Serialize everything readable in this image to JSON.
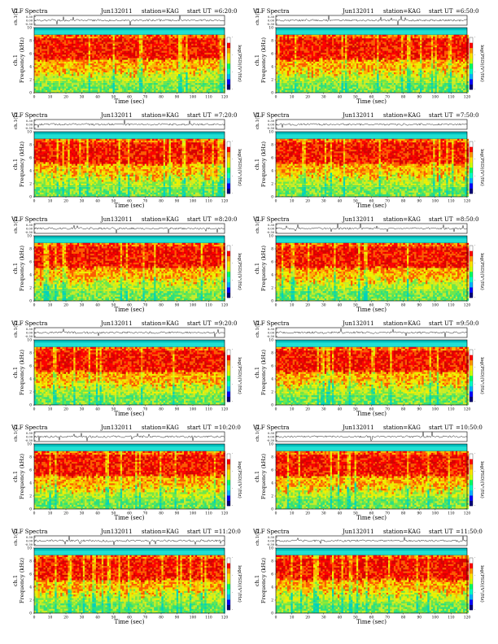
{
  "page": {
    "title_prefix": "VLF Spectra",
    "date": "Jun132011",
    "station": "station=KAG",
    "start_prefix": "start  UT",
    "colors": {
      "background": "#00bdbd",
      "band_top": "#21e0d2",
      "noise": [
        "#00d2be",
        "#2ee07e",
        "#6ee84a",
        "#c8ec2a",
        "#f0f000",
        "#ffb400",
        "#ff5a00",
        "#ff0000",
        "#d80000"
      ],
      "colorbar": [
        "#00007a",
        "#0000ff",
        "#00b4ff",
        "#00ffc8",
        "#00ff64",
        "#d2ff00",
        "#ffe600",
        "#ff9600",
        "#ff0000",
        "#ffffff"
      ],
      "trace": "#000000"
    }
  },
  "chart_data": [
    {
      "type": "heatmap",
      "panel": "left-1",
      "start_ut": "=6:20:0",
      "waveform_label": "ch.1(V)",
      "waveform_ticks": [
        "0.30",
        "0.00",
        "-0.30"
      ],
      "ylabel_station": "ch.1",
      "ylabel": "Frequency (kHz)",
      "xlabel": "Time (sec)",
      "colorbar_label": "log(PSD)(V²/Hz)",
      "x_ticks": [
        0,
        10,
        20,
        30,
        40,
        50,
        60,
        70,
        80,
        90,
        100,
        110,
        120
      ],
      "y_ticks": [
        0,
        2,
        4,
        6,
        8,
        10
      ],
      "xlim": [
        0,
        120
      ],
      "ylim": [
        0,
        10
      ],
      "colorbar_ticks": [
        "-",
        "-",
        "-",
        "-"
      ]
    },
    {
      "type": "heatmap",
      "panel": "right-1",
      "start_ut": "=6:50:0",
      "waveform_label": "ch.1(V)",
      "waveform_ticks": [
        "0.30",
        "0.00",
        "-0.30"
      ],
      "ylabel_station": "ch.1",
      "ylabel": "Frequency (kHz)",
      "xlabel": "Time (sec)",
      "colorbar_label": "log(PSD)(V²/Hz)",
      "x_ticks": [
        0,
        10,
        20,
        30,
        40,
        50,
        60,
        70,
        80,
        90,
        100,
        110,
        120
      ],
      "y_ticks": [
        0,
        2,
        4,
        6,
        8,
        10
      ],
      "xlim": [
        0,
        120
      ],
      "ylim": [
        0,
        10
      ],
      "colorbar_ticks": [
        "-",
        "-",
        "-",
        "-"
      ]
    },
    {
      "type": "heatmap",
      "panel": "left-2",
      "start_ut": "=7:20:0",
      "waveform_label": "ch.1(V)",
      "waveform_ticks": [
        "0.30",
        "0.00",
        "-0.30"
      ],
      "ylabel_station": "ch.1",
      "ylabel": "Frequency (kHz)",
      "xlabel": "Time (sec)",
      "colorbar_label": "log(PSD)(V²/Hz)",
      "x_ticks": [
        0,
        10,
        20,
        30,
        40,
        50,
        60,
        70,
        80,
        90,
        100,
        110,
        120
      ],
      "y_ticks": [
        0,
        2,
        4,
        6,
        8,
        10
      ],
      "xlim": [
        0,
        120
      ],
      "ylim": [
        0,
        10
      ],
      "colorbar_ticks": [
        "-",
        "-",
        "-",
        "-"
      ]
    },
    {
      "type": "heatmap",
      "panel": "right-2",
      "start_ut": "=7:50:0",
      "waveform_label": "ch.1(V)",
      "waveform_ticks": [
        "0.30",
        "0.00",
        "-0.30"
      ],
      "ylabel_station": "ch.1",
      "ylabel": "Frequency (kHz)",
      "xlabel": "Time (sec)",
      "colorbar_label": "log(PSD)(V²/Hz)",
      "x_ticks": [
        0,
        10,
        20,
        30,
        40,
        50,
        60,
        70,
        80,
        90,
        100,
        110,
        120
      ],
      "y_ticks": [
        0,
        2,
        4,
        6,
        8,
        10
      ],
      "xlim": [
        0,
        120
      ],
      "ylim": [
        0,
        10
      ],
      "colorbar_ticks": [
        "-",
        "-",
        "-",
        "-"
      ]
    },
    {
      "type": "heatmap",
      "panel": "left-3",
      "start_ut": "=8:20:0",
      "waveform_label": "ch.1(V)",
      "waveform_ticks": [
        "0.30",
        "0.00",
        "-0.30"
      ],
      "ylabel_station": "ch.1",
      "ylabel": "Frequency (kHz)",
      "xlabel": "Time (sec)",
      "colorbar_label": "log(PSD)(V²/Hz)",
      "x_ticks": [
        0,
        10,
        20,
        30,
        40,
        50,
        60,
        70,
        80,
        90,
        100,
        110,
        120
      ],
      "y_ticks": [
        0,
        2,
        4,
        6,
        8,
        10
      ],
      "xlim": [
        0,
        120
      ],
      "ylim": [
        0,
        10
      ],
      "colorbar_ticks": [
        "-",
        "-",
        "-",
        "-"
      ]
    },
    {
      "type": "heatmap",
      "panel": "right-3",
      "start_ut": "=8:50:0",
      "waveform_label": "ch.1(V)",
      "waveform_ticks": [
        "0.30",
        "0.00",
        "-0.30"
      ],
      "ylabel_station": "ch.1",
      "ylabel": "Frequency (kHz)",
      "xlabel": "Time (sec)",
      "colorbar_label": "log(PSD)(V²/Hz)",
      "x_ticks": [
        0,
        10,
        20,
        30,
        40,
        50,
        60,
        70,
        80,
        90,
        100,
        110,
        120
      ],
      "y_ticks": [
        0,
        2,
        4,
        6,
        8,
        10
      ],
      "xlim": [
        0,
        120
      ],
      "ylim": [
        0,
        10
      ],
      "colorbar_ticks": [
        "-",
        "-",
        "-",
        "-"
      ]
    },
    {
      "type": "heatmap",
      "panel": "left-4",
      "start_ut": "=9:20:0",
      "waveform_label": "ch.1(V)",
      "waveform_ticks": [
        "0.30",
        "0.00",
        "-0.30"
      ],
      "ylabel_station": "ch.1",
      "ylabel": "Frequency (kHz)",
      "xlabel": "Time (sec)",
      "colorbar_label": "log(PSD)(V²/Hz)",
      "x_ticks": [
        0,
        10,
        20,
        30,
        40,
        50,
        60,
        70,
        80,
        90,
        100,
        110,
        120
      ],
      "y_ticks": [
        0,
        2,
        4,
        6,
        8,
        10
      ],
      "xlim": [
        0,
        120
      ],
      "ylim": [
        0,
        10
      ],
      "colorbar_ticks": [
        "-",
        "-",
        "-",
        "-"
      ]
    },
    {
      "type": "heatmap",
      "panel": "right-4",
      "start_ut": "=9:50:0",
      "waveform_label": "ch.1(V)",
      "waveform_ticks": [
        "0.30",
        "0.00",
        "-0.30"
      ],
      "ylabel_station": "ch.1",
      "ylabel": "Frequency (kHz)",
      "xlabel": "Time (sec)",
      "colorbar_label": "log(PSD)(V²/Hz)",
      "x_ticks": [
        0,
        10,
        20,
        30,
        40,
        50,
        60,
        70,
        80,
        90,
        100,
        110,
        120
      ],
      "y_ticks": [
        0,
        2,
        4,
        6,
        8,
        10
      ],
      "xlim": [
        0,
        120
      ],
      "ylim": [
        0,
        10
      ],
      "colorbar_ticks": [
        "-",
        "-",
        "-",
        "-"
      ]
    },
    {
      "type": "heatmap",
      "panel": "left-5",
      "start_ut": "=10:20:0",
      "waveform_label": "ch.1(V)",
      "waveform_ticks": [
        "0.30",
        "0.00",
        "-0.30"
      ],
      "ylabel_station": "ch.1",
      "ylabel": "Frequency (kHz)",
      "xlabel": "Time (sec)",
      "colorbar_label": "log(PSD)(V²/Hz)",
      "x_ticks": [
        0,
        10,
        20,
        30,
        40,
        50,
        60,
        70,
        80,
        90,
        100,
        110,
        120
      ],
      "y_ticks": [
        0,
        2,
        4,
        6,
        8,
        10
      ],
      "xlim": [
        0,
        120
      ],
      "ylim": [
        0,
        10
      ],
      "colorbar_ticks": [
        "-",
        "-",
        "-",
        "-"
      ]
    },
    {
      "type": "heatmap",
      "panel": "right-5",
      "start_ut": "=10:50:0",
      "waveform_label": "ch.1(V)",
      "waveform_ticks": [
        "0.30",
        "0.00",
        "-0.30"
      ],
      "ylabel_station": "ch.1",
      "ylabel": "Frequency (kHz)",
      "xlabel": "Time (sec)",
      "colorbar_label": "log(PSD)(V²/Hz)",
      "x_ticks": [
        0,
        10,
        20,
        30,
        40,
        50,
        60,
        70,
        80,
        90,
        100,
        110,
        120
      ],
      "y_ticks": [
        0,
        2,
        4,
        6,
        8,
        10
      ],
      "xlim": [
        0,
        120
      ],
      "ylim": [
        0,
        10
      ],
      "colorbar_ticks": [
        "-",
        "-",
        "-",
        "-"
      ]
    },
    {
      "type": "heatmap",
      "panel": "left-6",
      "start_ut": "=11:20:0",
      "waveform_label": "ch.1(V)",
      "waveform_ticks": [
        "0.30",
        "0.00",
        "-0.30"
      ],
      "ylabel_station": "ch.1",
      "ylabel": "Frequency (kHz)",
      "xlabel": "Time (sec)",
      "colorbar_label": "log(PSD)(V²/Hz)",
      "x_ticks": [
        0,
        10,
        20,
        30,
        40,
        50,
        60,
        70,
        80,
        90,
        100,
        110,
        120
      ],
      "y_ticks": [
        0,
        2,
        4,
        6,
        8,
        10
      ],
      "xlim": [
        0,
        120
      ],
      "ylim": [
        0,
        10
      ],
      "colorbar_ticks": [
        "-",
        "-",
        "-",
        "-"
      ]
    },
    {
      "type": "heatmap",
      "panel": "right-6",
      "start_ut": "=11:50:0",
      "waveform_label": "ch.1(V)",
      "waveform_ticks": [
        "0.30",
        "0.00",
        "-0.30"
      ],
      "ylabel_station": "ch.1",
      "ylabel": "Frequency (kHz)",
      "xlabel": "Time (sec)",
      "colorbar_label": "log(PSD)(V²/Hz)",
      "x_ticks": [
        0,
        10,
        20,
        30,
        40,
        50,
        60,
        70,
        80,
        90,
        100,
        110,
        120
      ],
      "y_ticks": [
        0,
        2,
        4,
        6,
        8,
        10
      ],
      "xlim": [
        0,
        120
      ],
      "ylim": [
        0,
        10
      ],
      "colorbar_ticks": [
        "-",
        "-",
        "-",
        "-"
      ]
    }
  ]
}
